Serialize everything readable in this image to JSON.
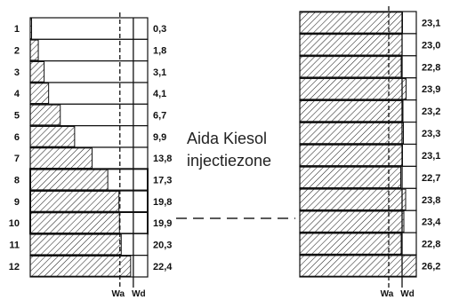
{
  "annotation": {
    "line1": "Aida Kiesol",
    "line2": "injectiezone"
  },
  "chart_data": [
    {
      "type": "bar",
      "orientation": "horizontal",
      "grid": false,
      "legend": "none",
      "axis_labels": [
        "Wa",
        "Wd"
      ],
      "categories": [
        "1",
        "2",
        "3",
        "4",
        "5",
        "6",
        "7",
        "8",
        "9",
        "10",
        "11",
        "12"
      ],
      "values": [
        0.3,
        1.8,
        3.1,
        4.1,
        6.7,
        9.9,
        13.8,
        17.3,
        19.8,
        19.9,
        20.3,
        22.4
      ],
      "value_labels": [
        "0,3",
        "1,8",
        "3,1",
        "4,1",
        "6,7",
        "9,9",
        "13,8",
        "17,3",
        "19,8",
        "19,9",
        "20,3",
        "22,4"
      ],
      "xlim": [
        0,
        26.2
      ],
      "reference_lines": {
        "Wa": 20.0,
        "Wd": 23.0
      },
      "bold_rows": [
        "8",
        "9",
        "10"
      ],
      "colors": {
        "bar_fill": "#ffffff",
        "hatch": "#222222",
        "frame": "#111111"
      }
    },
    {
      "type": "bar",
      "orientation": "horizontal",
      "grid": false,
      "legend": "none",
      "axis_labels": [
        "Wa",
        "Wd"
      ],
      "values": [
        23.1,
        23.0,
        22.8,
        23.9,
        23.2,
        23.3,
        23.1,
        22.7,
        23.8,
        23.4,
        22.8,
        26.2
      ],
      "value_labels": [
        "23,1",
        "23,0",
        "22,8",
        "23,9",
        "23,2",
        "23,3",
        "23,1",
        "22,7",
        "23,8",
        "23,4",
        "22,8",
        "26,2"
      ],
      "xlim": [
        0,
        26.2
      ],
      "reference_lines": {
        "Wa": 20.0,
        "Wd": 23.0
      },
      "colors": {
        "bar_fill": "#ffffff",
        "hatch": "#222222",
        "frame": "#111111"
      }
    }
  ]
}
